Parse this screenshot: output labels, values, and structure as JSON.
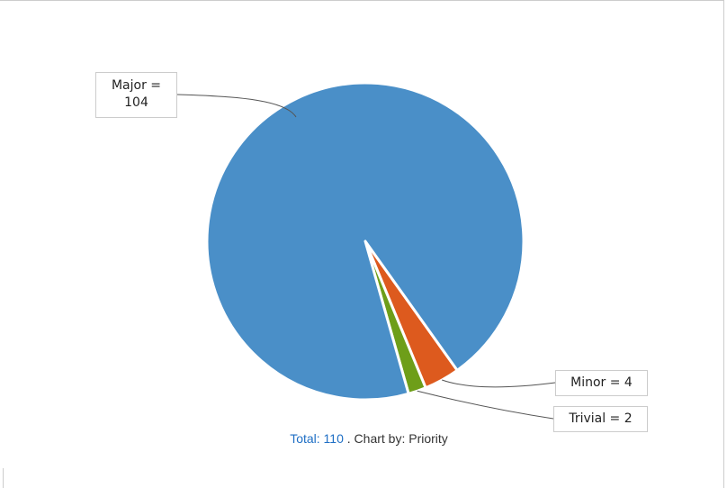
{
  "chart_data": {
    "type": "pie",
    "slices": [
      {
        "label": "Major",
        "value": 104,
        "color": "#4a8fc8",
        "text": "Major = 104",
        "line1": "Major =",
        "line2": "104"
      },
      {
        "label": "Minor",
        "value": 4,
        "color": "#dd5a1e",
        "text": "Minor = 4"
      },
      {
        "label": "Trivial",
        "value": 2,
        "color": "#6e9e19",
        "text": "Trivial = 2"
      }
    ]
  },
  "footer": {
    "total_link": "Total: 110",
    "rest": " . Chart by: Priority"
  }
}
